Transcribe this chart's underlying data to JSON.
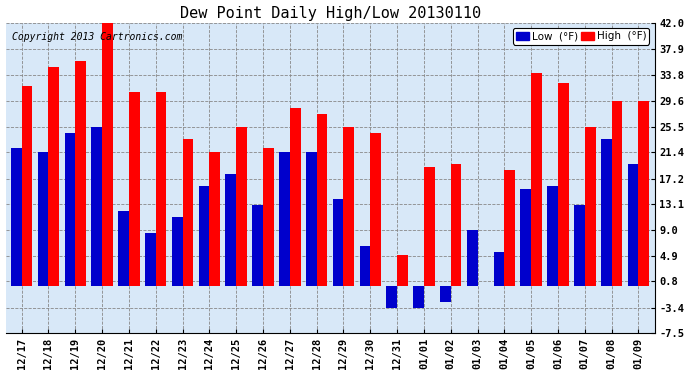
{
  "title": "Dew Point Daily High/Low 20130110",
  "copyright": "Copyright 2013 Cartronics.com",
  "dates": [
    "12/17",
    "12/18",
    "12/19",
    "12/20",
    "12/21",
    "12/22",
    "12/23",
    "12/24",
    "12/25",
    "12/26",
    "12/27",
    "12/28",
    "12/29",
    "12/30",
    "12/31",
    "01/01",
    "01/02",
    "01/03",
    "01/04",
    "01/05",
    "01/06",
    "01/07",
    "01/08",
    "01/09"
  ],
  "high": [
    32.0,
    35.0,
    36.0,
    42.0,
    31.0,
    31.0,
    23.5,
    21.5,
    25.5,
    22.0,
    28.5,
    27.5,
    25.5,
    24.5,
    5.0,
    19.0,
    19.5,
    0.0,
    18.5,
    34.0,
    32.5,
    25.5,
    29.5,
    29.5
  ],
  "low": [
    22.0,
    21.5,
    24.5,
    25.5,
    12.0,
    8.5,
    11.0,
    16.0,
    18.0,
    13.0,
    21.5,
    21.5,
    14.0,
    6.5,
    -3.5,
    -3.5,
    -2.5,
    9.0,
    5.5,
    15.5,
    16.0,
    13.0,
    23.5,
    19.5
  ],
  "ylim": [
    -7.5,
    42.0
  ],
  "yticks": [
    -7.5,
    -3.4,
    0.8,
    4.9,
    9.0,
    13.1,
    17.2,
    21.4,
    25.5,
    29.6,
    33.8,
    37.9,
    42.0
  ],
  "ytick_labels": [
    "-7.5",
    "-3.4",
    "0.8",
    "4.9",
    "9.0",
    "13.1",
    "17.2",
    "21.4",
    "25.5",
    "29.6",
    "33.8",
    "37.9",
    "42.0"
  ],
  "bar_width": 0.4,
  "high_color": "#FF0000",
  "low_color": "#0000CC",
  "bg_color": "#FFFFFF",
  "plot_bg_color": "#D8E8F8",
  "grid_color": "#AAAAAA",
  "title_fontsize": 11,
  "tick_fontsize": 7.5,
  "copyright_fontsize": 7,
  "legend_low_label": "Low  (°F)",
  "legend_high_label": "High  (°F)"
}
